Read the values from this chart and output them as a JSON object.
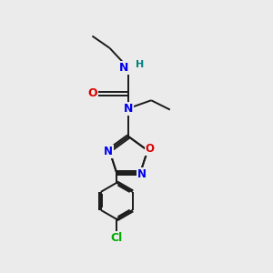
{
  "bg_color": "#ebebeb",
  "bond_color": "#1a1a1a",
  "N_color": "#0000ee",
  "O_color": "#dd0000",
  "Cl_color": "#00aa00",
  "H_color": "#008080",
  "figsize": [
    3.0,
    3.0
  ],
  "dpi": 100,
  "xlim": [
    0,
    10
  ],
  "ylim": [
    0,
    10
  ]
}
